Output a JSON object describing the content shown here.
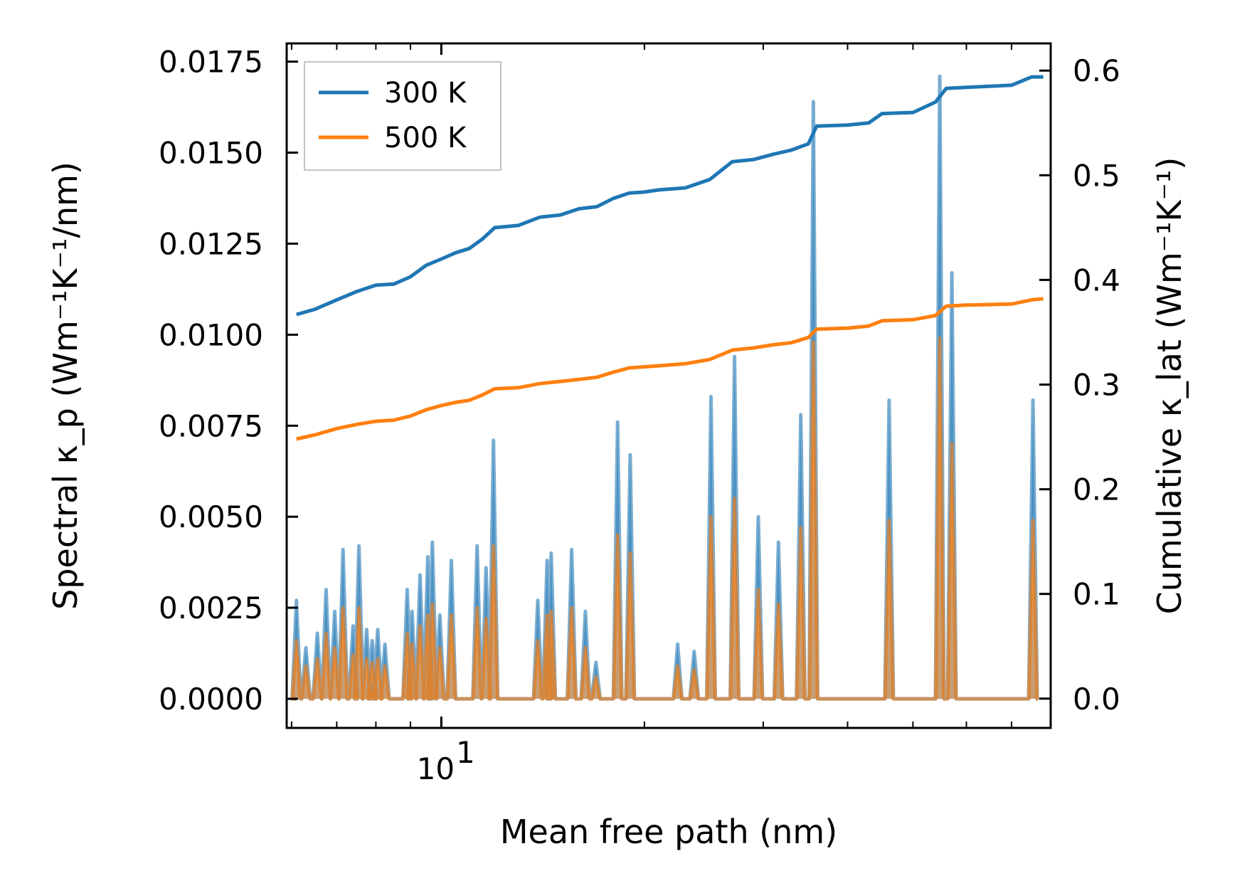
{
  "chart_data": {
    "type": "line",
    "x_scale": "log",
    "xlim": [
      5.9,
      80
    ],
    "xlabel": "Mean free path (nm)",
    "ylabel_left": "Spectral κ_p (Wm⁻¹K⁻¹/nm)",
    "ylabel_right": "Cumulative κ_lat (Wm⁻¹K⁻¹)",
    "ylim_left": [
      -0.0008,
      0.018
    ],
    "ylim_right": [
      -0.028,
      0.626
    ],
    "x_ticks": [
      {
        "value": 10,
        "base": "10",
        "exp": "1"
      }
    ],
    "y_ticks_left": [
      {
        "value": 0.0,
        "label": "0.0000"
      },
      {
        "value": 0.0025,
        "label": "0.0025"
      },
      {
        "value": 0.005,
        "label": "0.0050"
      },
      {
        "value": 0.0075,
        "label": "0.0075"
      },
      {
        "value": 0.01,
        "label": "0.0100"
      },
      {
        "value": 0.0125,
        "label": "0.0125"
      },
      {
        "value": 0.015,
        "label": "0.0150"
      },
      {
        "value": 0.0175,
        "label": "0.0175"
      }
    ],
    "y_ticks_right": [
      {
        "value": 0.0,
        "label": "0.0"
      },
      {
        "value": 0.1,
        "label": "0.1"
      },
      {
        "value": 0.2,
        "label": "0.2"
      },
      {
        "value": 0.3,
        "label": "0.3"
      },
      {
        "value": 0.4,
        "label": "0.4"
      },
      {
        "value": 0.5,
        "label": "0.5"
      },
      {
        "value": 0.6,
        "label": "0.6"
      }
    ],
    "legend": {
      "location": "top-left",
      "entries": [
        {
          "name": "300 K",
          "color": "#1f77b4"
        },
        {
          "name": "500 K",
          "color": "#ff7f0e"
        }
      ]
    },
    "spectral_peaks_300K": [
      [
        6.1,
        0.0027
      ],
      [
        6.3,
        0.0014
      ],
      [
        6.55,
        0.0018
      ],
      [
        6.75,
        0.003
      ],
      [
        6.95,
        0.0024
      ],
      [
        7.15,
        0.0041
      ],
      [
        7.4,
        0.002
      ],
      [
        7.55,
        0.0042
      ],
      [
        7.75,
        0.0019
      ],
      [
        7.9,
        0.0016
      ],
      [
        8.05,
        0.0019
      ],
      [
        8.25,
        0.0015
      ],
      [
        8.9,
        0.003
      ],
      [
        9.05,
        0.0024
      ],
      [
        9.3,
        0.0034
      ],
      [
        9.55,
        0.0039
      ],
      [
        9.7,
        0.0043
      ],
      [
        9.95,
        0.0023
      ],
      [
        10.35,
        0.0038
      ],
      [
        11.3,
        0.0042
      ],
      [
        11.65,
        0.0036
      ],
      [
        11.95,
        0.0071
      ],
      [
        13.9,
        0.0027
      ],
      [
        14.35,
        0.0038
      ],
      [
        14.55,
        0.004
      ],
      [
        15.6,
        0.0041
      ],
      [
        16.35,
        0.0024
      ],
      [
        16.95,
        0.001
      ],
      [
        18.25,
        0.0076
      ],
      [
        19.05,
        0.0067
      ],
      [
        22.4,
        0.0015
      ],
      [
        23.7,
        0.0013
      ],
      [
        25.1,
        0.0083
      ],
      [
        27.2,
        0.0094
      ],
      [
        29.5,
        0.005
      ],
      [
        31.6,
        0.0043
      ],
      [
        34.1,
        0.0078
      ],
      [
        35.6,
        0.0164
      ],
      [
        46.1,
        0.0082
      ],
      [
        54.8,
        0.0171
      ],
      [
        57.1,
        0.0117
      ],
      [
        75.3,
        0.0082
      ]
    ],
    "spectral_peaks_500K": [
      [
        6.1,
        0.0016
      ],
      [
        6.3,
        0.0009
      ],
      [
        6.55,
        0.0011
      ],
      [
        6.75,
        0.0018
      ],
      [
        6.95,
        0.0014
      ],
      [
        7.15,
        0.0025
      ],
      [
        7.4,
        0.0012
      ],
      [
        7.55,
        0.0025
      ],
      [
        7.75,
        0.0011
      ],
      [
        7.9,
        0.001
      ],
      [
        8.05,
        0.0011
      ],
      [
        8.25,
        0.0009
      ],
      [
        8.9,
        0.0018
      ],
      [
        9.05,
        0.0015
      ],
      [
        9.3,
        0.002
      ],
      [
        9.55,
        0.0023
      ],
      [
        9.7,
        0.0026
      ],
      [
        9.95,
        0.0014
      ],
      [
        10.35,
        0.0023
      ],
      [
        11.3,
        0.0025
      ],
      [
        11.65,
        0.0022
      ],
      [
        11.95,
        0.0042
      ],
      [
        13.9,
        0.0016
      ],
      [
        14.35,
        0.0023
      ],
      [
        14.55,
        0.0024
      ],
      [
        15.6,
        0.0025
      ],
      [
        16.35,
        0.0014
      ],
      [
        16.95,
        0.0006
      ],
      [
        18.25,
        0.0045
      ],
      [
        19.05,
        0.004
      ],
      [
        22.4,
        0.0009
      ],
      [
        23.7,
        0.0008
      ],
      [
        25.1,
        0.005
      ],
      [
        27.2,
        0.0055
      ],
      [
        29.5,
        0.003
      ],
      [
        31.6,
        0.0026
      ],
      [
        34.1,
        0.0047
      ],
      [
        35.6,
        0.0098
      ],
      [
        46.1,
        0.0049
      ],
      [
        54.8,
        0.0099
      ],
      [
        57.1,
        0.007
      ],
      [
        75.3,
        0.0049
      ]
    ],
    "cumulative_300K": [
      [
        6.1,
        0.367
      ],
      [
        6.5,
        0.372
      ],
      [
        7.0,
        0.381
      ],
      [
        7.5,
        0.389
      ],
      [
        8.0,
        0.395
      ],
      [
        8.5,
        0.396
      ],
      [
        9.0,
        0.403
      ],
      [
        9.5,
        0.414
      ],
      [
        10.0,
        0.42
      ],
      [
        10.5,
        0.426
      ],
      [
        11.0,
        0.43
      ],
      [
        11.5,
        0.439
      ],
      [
        12.0,
        0.45
      ],
      [
        13.0,
        0.452
      ],
      [
        14.0,
        0.46
      ],
      [
        15.0,
        0.462
      ],
      [
        16.0,
        0.468
      ],
      [
        17.0,
        0.47
      ],
      [
        18.0,
        0.478
      ],
      [
        19.0,
        0.483
      ],
      [
        20.0,
        0.484
      ],
      [
        21.0,
        0.486
      ],
      [
        23.0,
        0.488
      ],
      [
        25.0,
        0.496
      ],
      [
        27.0,
        0.513
      ],
      [
        29.0,
        0.515
      ],
      [
        31.0,
        0.52
      ],
      [
        33.0,
        0.524
      ],
      [
        35.0,
        0.53
      ],
      [
        36.0,
        0.547
      ],
      [
        40.0,
        0.548
      ],
      [
        43.0,
        0.55
      ],
      [
        45.0,
        0.559
      ],
      [
        50.0,
        0.56
      ],
      [
        54.0,
        0.57
      ],
      [
        56.0,
        0.583
      ],
      [
        60.0,
        0.584
      ],
      [
        70.0,
        0.586
      ],
      [
        75.0,
        0.594
      ],
      [
        78.0,
        0.594
      ]
    ],
    "cumulative_500K": [
      [
        6.1,
        0.248
      ],
      [
        6.5,
        0.252
      ],
      [
        7.0,
        0.258
      ],
      [
        7.5,
        0.262
      ],
      [
        8.0,
        0.265
      ],
      [
        8.5,
        0.266
      ],
      [
        9.0,
        0.27
      ],
      [
        9.5,
        0.276
      ],
      [
        10.0,
        0.28
      ],
      [
        10.5,
        0.283
      ],
      [
        11.0,
        0.285
      ],
      [
        11.5,
        0.29
      ],
      [
        12.0,
        0.296
      ],
      [
        13.0,
        0.297
      ],
      [
        14.0,
        0.301
      ],
      [
        15.0,
        0.303
      ],
      [
        16.0,
        0.305
      ],
      [
        17.0,
        0.307
      ],
      [
        18.0,
        0.312
      ],
      [
        19.0,
        0.316
      ],
      [
        20.0,
        0.317
      ],
      [
        21.0,
        0.318
      ],
      [
        23.0,
        0.32
      ],
      [
        25.0,
        0.324
      ],
      [
        27.0,
        0.333
      ],
      [
        29.0,
        0.335
      ],
      [
        31.0,
        0.338
      ],
      [
        33.0,
        0.34
      ],
      [
        35.0,
        0.345
      ],
      [
        36.0,
        0.353
      ],
      [
        40.0,
        0.354
      ],
      [
        43.0,
        0.356
      ],
      [
        45.0,
        0.361
      ],
      [
        50.0,
        0.362
      ],
      [
        54.0,
        0.366
      ],
      [
        56.0,
        0.375
      ],
      [
        60.0,
        0.376
      ],
      [
        70.0,
        0.377
      ],
      [
        75.0,
        0.381
      ],
      [
        78.0,
        0.382
      ]
    ]
  }
}
